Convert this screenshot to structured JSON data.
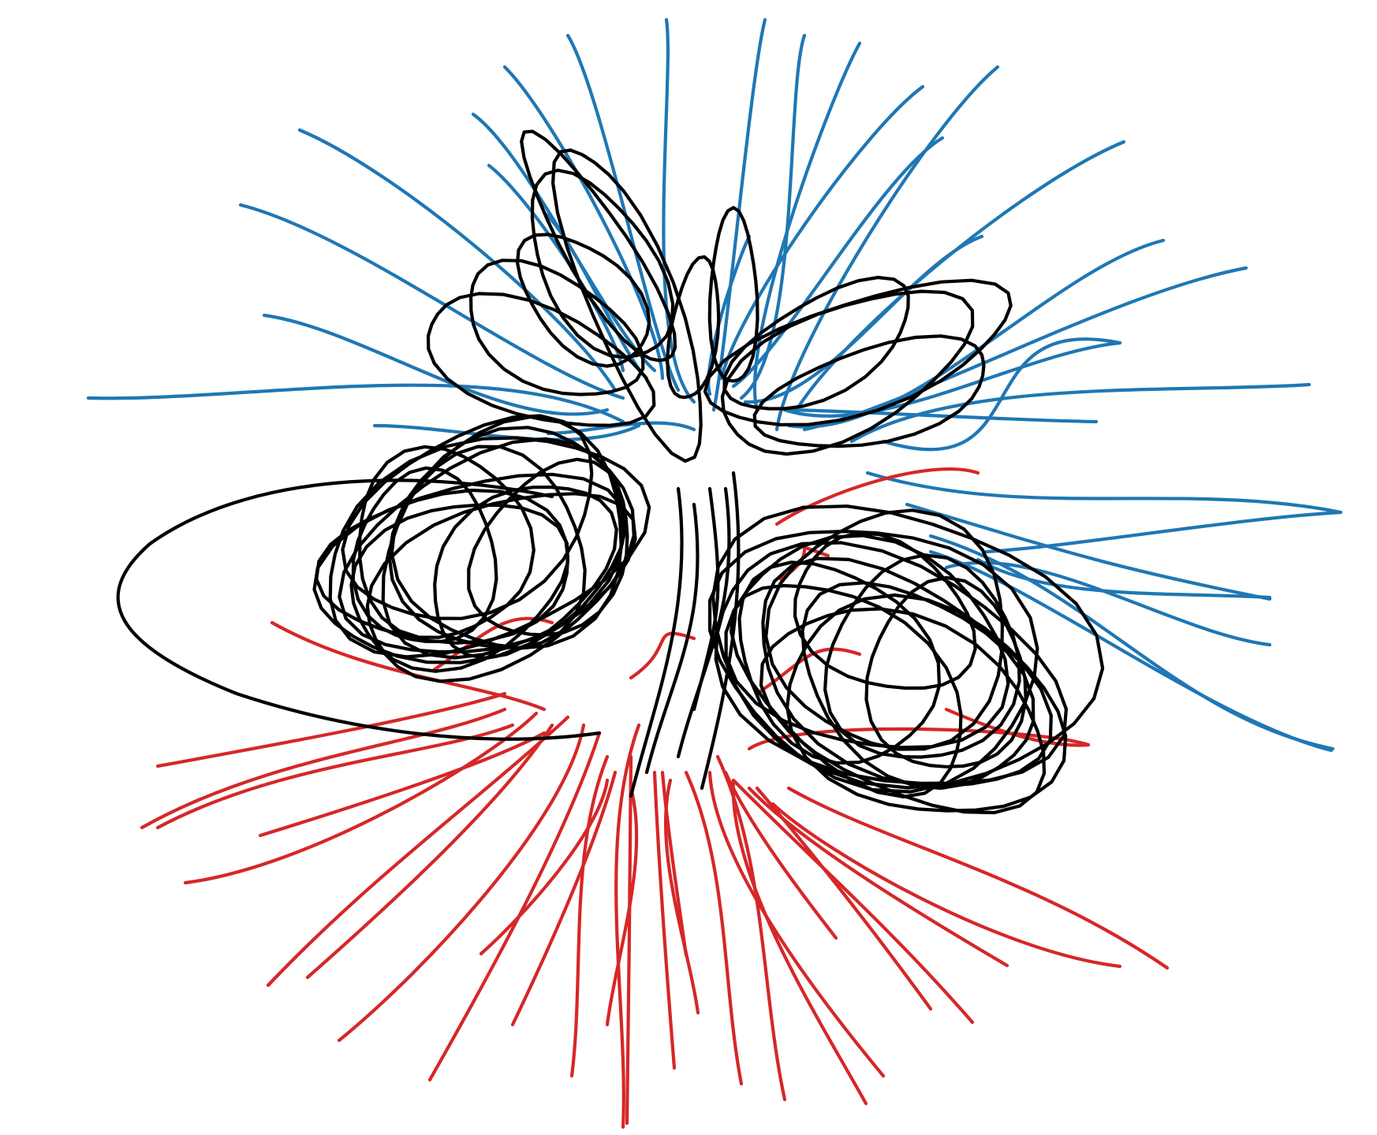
{
  "diagram": {
    "kind": "magnetic-field-line-rendering",
    "background": "#ffffff",
    "line_groups": [
      {
        "id": "open-outward",
        "color": "#1f77b4"
      },
      {
        "id": "closed-loops",
        "color": "#000000"
      },
      {
        "id": "open-inward",
        "color": "#d62728"
      }
    ]
  }
}
